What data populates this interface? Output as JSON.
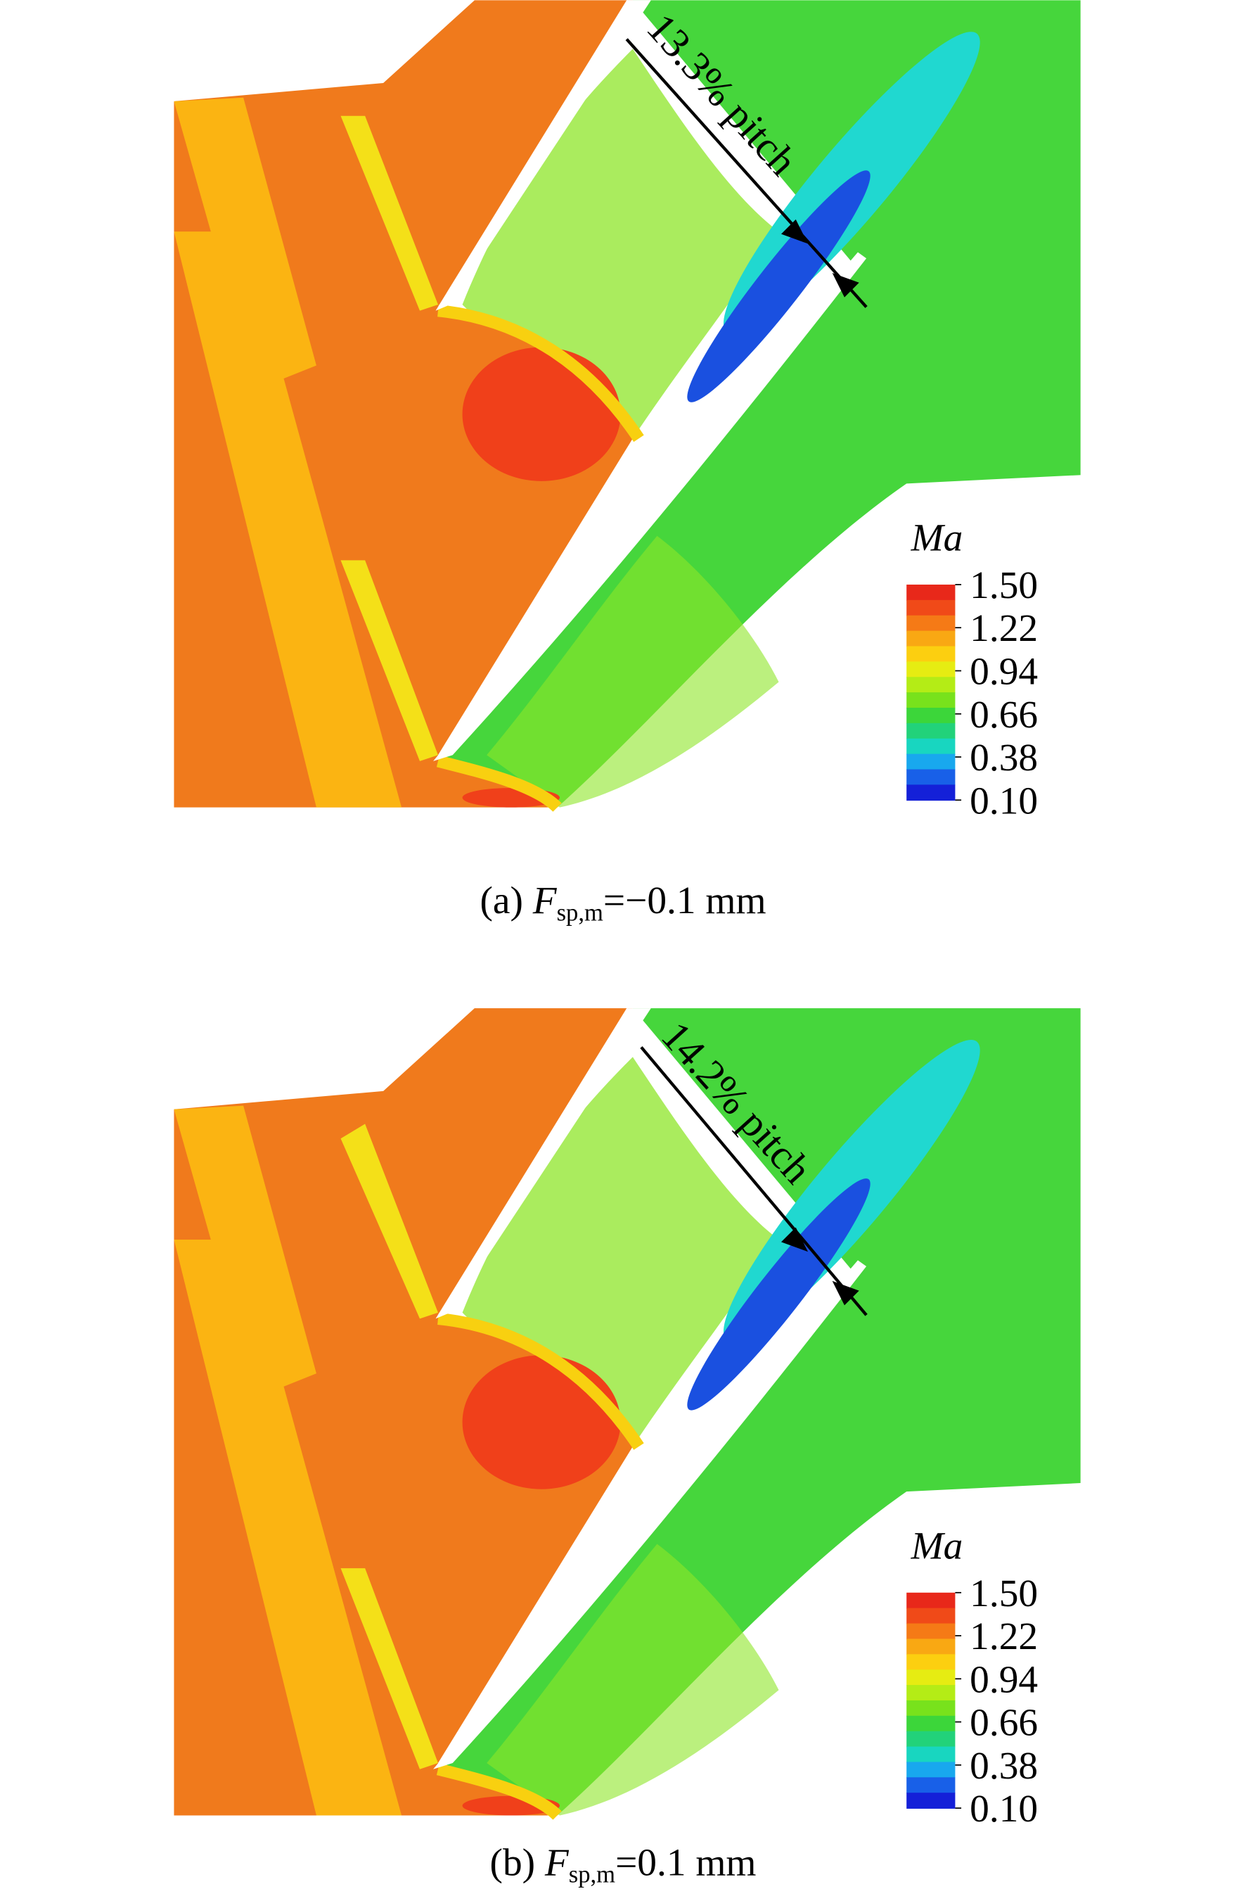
{
  "panels": [
    {
      "annotation": "13.3% pitch",
      "colorbar": {
        "title": "Ma",
        "range": [
          0.1,
          1.5
        ],
        "ticks": [
          {
            "value": 1.5,
            "label": "1.50"
          },
          {
            "value": 1.22,
            "label": "1.22"
          },
          {
            "value": 0.94,
            "label": "0.94"
          },
          {
            "value": 0.66,
            "label": "0.66"
          },
          {
            "value": 0.38,
            "label": "0.38"
          },
          {
            "value": 0.1,
            "label": "0.10"
          }
        ]
      },
      "caption": {
        "prefix": "(a) ",
        "symbol": "F",
        "subscript": "sp,m",
        "suffix": "=−0.1 mm"
      }
    },
    {
      "annotation": "14.2% pitch",
      "colorbar": {
        "title": "Ma",
        "range": [
          0.1,
          1.5
        ],
        "ticks": [
          {
            "value": 1.5,
            "label": "1.50"
          },
          {
            "value": 1.22,
            "label": "1.22"
          },
          {
            "value": 0.94,
            "label": "0.94"
          },
          {
            "value": 0.66,
            "label": "0.66"
          },
          {
            "value": 0.38,
            "label": "0.38"
          },
          {
            "value": 0.1,
            "label": "0.10"
          }
        ]
      },
      "caption": {
        "prefix": "(b) ",
        "symbol": "F",
        "subscript": "sp,m",
        "suffix": "=0.1 mm"
      }
    }
  ]
}
